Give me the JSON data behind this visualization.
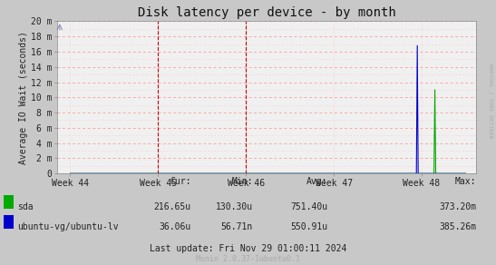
{
  "title": "Disk latency per device - by month",
  "ylabel": "Average IO Wait (seconds)",
  "background_color": "#c8c8c8",
  "plot_bg_color": "#f0f0f0",
  "grid_color_major": "#ff8888",
  "grid_color_minor": "#ffbbbb",
  "x_tick_labels": [
    "Week 44",
    "Week 45",
    "Week 46",
    "Week 47",
    "Week 48"
  ],
  "x_tick_positions": [
    0,
    1,
    2,
    3,
    4
  ],
  "ytick_labels": [
    "0",
    "2 m",
    "4 m",
    "6 m",
    "8 m",
    "10 m",
    "12 m",
    "14 m",
    "16 m",
    "18 m",
    "20 m"
  ],
  "ytick_values": [
    0,
    2,
    4,
    6,
    8,
    10,
    12,
    14,
    16,
    18,
    20
  ],
  "ylim": [
    0,
    20
  ],
  "xlim": [
    -0.15,
    4.62
  ],
  "series": [
    {
      "name": "sda",
      "color": "#00aa00",
      "cur": "216.65u",
      "min": "130.30u",
      "avg": "751.40u",
      "max": "373.20m",
      "x": [
        0,
        3.85,
        3.86,
        3.88,
        3.89,
        3.9,
        3.91,
        3.92,
        3.93,
        3.94,
        3.95,
        3.96,
        3.97,
        3.98,
        3.99,
        4.0,
        4.01,
        4.02,
        4.03,
        4.04,
        4.05,
        4.06,
        4.07,
        4.08,
        4.09,
        4.1,
        4.11,
        4.12,
        4.13,
        4.14,
        4.15,
        4.16,
        4.17,
        4.18,
        4.19,
        4.2,
        4.21,
        4.22,
        4.5
      ],
      "y": [
        0,
        0,
        0,
        0,
        0,
        0,
        0,
        0,
        0,
        0,
        0,
        0,
        0,
        0,
        0,
        0,
        0,
        0,
        0,
        0,
        0,
        0,
        0,
        0,
        0,
        0,
        0,
        0,
        0,
        0,
        11.0,
        0,
        0,
        0,
        0,
        0,
        0,
        0,
        0
      ]
    },
    {
      "name": "ubuntu-vg/ubuntu-lv",
      "color": "#0000cc",
      "cur": "36.06u",
      "min": "56.71n",
      "avg": "550.91u",
      "max": "385.26m",
      "x": [
        0,
        3.85,
        3.86,
        3.87,
        3.88,
        3.89,
        3.9,
        3.91,
        3.92,
        3.93,
        3.94,
        3.95,
        3.96,
        3.97,
        3.98,
        3.99,
        4.0,
        4.01,
        4.02,
        4.03,
        4.04,
        4.05,
        4.06,
        4.07,
        4.08,
        4.09,
        4.5
      ],
      "y": [
        0,
        0,
        0,
        0,
        0,
        0,
        0,
        0,
        0,
        0,
        0,
        16.8,
        0,
        0,
        0,
        0,
        0,
        0,
        0,
        0,
        0,
        0,
        0,
        0,
        0,
        0,
        0
      ]
    }
  ],
  "vlines": [
    1.0,
    2.0
  ],
  "vline_color": "#cc0000",
  "legend_headers": [
    "Cur:",
    "Min:",
    "Avg:",
    "Max:"
  ],
  "legend_rows": [
    {
      "name": "sda",
      "color": "#00aa00",
      "vals": [
        "216.65u",
        "130.30u",
        "751.40u",
        "373.20m"
      ]
    },
    {
      "name": "ubuntu-vg/ubuntu-lv",
      "color": "#0000cc",
      "vals": [
        "36.06u",
        "56.71n",
        "550.91u",
        "385.26m"
      ]
    }
  ],
  "footer": "Last update: Fri Nov 29 01:00:11 2024",
  "credit": "Munin 2.0.37-1ubuntu0.1",
  "watermark": "RRDTOOL / TOBI OETIKER",
  "title_fs": 10,
  "tick_fs": 7,
  "legend_fs": 7,
  "credit_fs": 6
}
